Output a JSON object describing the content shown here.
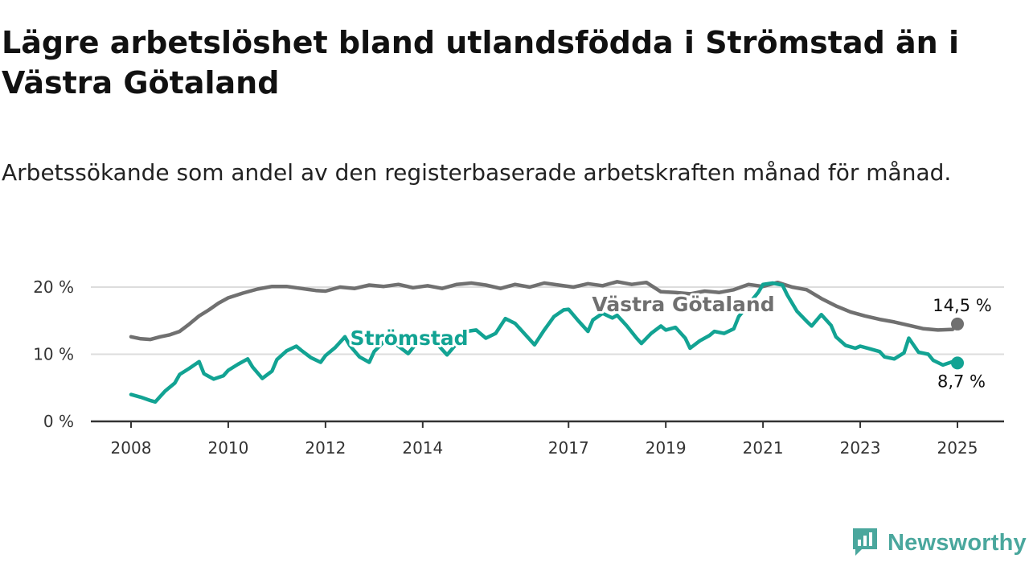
{
  "title": "Lägre arbetslöshet bland utlandsfödda i Strömstad än i Västra Götaland",
  "subtitle": "Arbetssökande som andel av den registerbaserade arbetskraften månad för månad.",
  "brand": "Newsworthy",
  "colors": {
    "stromstad": "#12a393",
    "vastra_gotaland": "#707070",
    "grid": "#dddddd",
    "axis": "#333333",
    "brand": "#4aa79d"
  },
  "chart_data": {
    "type": "line",
    "title": "Lägre arbetslöshet bland utlandsfödda i Strömstad än i Västra Götaland",
    "subtitle": "Arbetssökande som andel av den registerbaserade arbetskraften månad för månad.",
    "x_unit": "year (decimal, monthly data)",
    "xlim": [
      2008,
      2025
    ],
    "ylim": [
      0,
      20
    ],
    "y_ticks": [
      0,
      10,
      20
    ],
    "y_tick_labels": [
      "0 %",
      "10 %",
      "20 %"
    ],
    "x_ticks": [
      2008,
      2010,
      2012,
      2014,
      2017,
      2019,
      2021,
      2023,
      2025
    ],
    "x_tick_labels": [
      "2008",
      "2010",
      "2012",
      "2014",
      "2017",
      "2019",
      "2021",
      "2023",
      "2025"
    ],
    "grid": "horizontal",
    "series": [
      {
        "name": "Västra Götaland",
        "color": "#707070",
        "end_label": "14,5 %",
        "points": [
          [
            2008.0,
            12.6
          ],
          [
            2008.2,
            12.3
          ],
          [
            2008.4,
            12.2
          ],
          [
            2008.6,
            12.6
          ],
          [
            2008.8,
            12.9
          ],
          [
            2009.0,
            13.4
          ],
          [
            2009.2,
            14.5
          ],
          [
            2009.4,
            15.7
          ],
          [
            2009.6,
            16.6
          ],
          [
            2009.8,
            17.6
          ],
          [
            2010.0,
            18.4
          ],
          [
            2010.3,
            19.1
          ],
          [
            2010.6,
            19.7
          ],
          [
            2010.9,
            20.1
          ],
          [
            2011.2,
            20.1
          ],
          [
            2011.5,
            19.8
          ],
          [
            2011.8,
            19.5
          ],
          [
            2012.0,
            19.4
          ],
          [
            2012.3,
            20.0
          ],
          [
            2012.6,
            19.8
          ],
          [
            2012.9,
            20.3
          ],
          [
            2013.2,
            20.1
          ],
          [
            2013.5,
            20.4
          ],
          [
            2013.8,
            19.9
          ],
          [
            2014.1,
            20.2
          ],
          [
            2014.4,
            19.8
          ],
          [
            2014.7,
            20.4
          ],
          [
            2015.0,
            20.6
          ],
          [
            2015.3,
            20.3
          ],
          [
            2015.6,
            19.8
          ],
          [
            2015.9,
            20.4
          ],
          [
            2016.2,
            20.0
          ],
          [
            2016.5,
            20.6
          ],
          [
            2016.8,
            20.3
          ],
          [
            2017.1,
            20.0
          ],
          [
            2017.4,
            20.5
          ],
          [
            2017.7,
            20.2
          ],
          [
            2018.0,
            20.8
          ],
          [
            2018.3,
            20.4
          ],
          [
            2018.6,
            20.7
          ],
          [
            2018.9,
            19.3
          ],
          [
            2019.2,
            19.2
          ],
          [
            2019.5,
            19.0
          ],
          [
            2019.8,
            19.4
          ],
          [
            2020.1,
            19.2
          ],
          [
            2020.4,
            19.6
          ],
          [
            2020.7,
            20.4
          ],
          [
            2021.0,
            20.1
          ],
          [
            2021.3,
            20.7
          ],
          [
            2021.6,
            20.0
          ],
          [
            2021.9,
            19.6
          ],
          [
            2022.2,
            18.3
          ],
          [
            2022.5,
            17.2
          ],
          [
            2022.8,
            16.3
          ],
          [
            2023.1,
            15.7
          ],
          [
            2023.4,
            15.2
          ],
          [
            2023.7,
            14.8
          ],
          [
            2024.0,
            14.3
          ],
          [
            2024.3,
            13.8
          ],
          [
            2024.6,
            13.6
          ],
          [
            2024.9,
            13.7
          ],
          [
            2025.0,
            14.5
          ]
        ]
      },
      {
        "name": "Strömstad",
        "color": "#12a393",
        "end_label": "8,7 %",
        "points": [
          [
            2008.0,
            4.0
          ],
          [
            2008.2,
            3.6
          ],
          [
            2008.4,
            3.1
          ],
          [
            2008.5,
            2.9
          ],
          [
            2008.7,
            4.5
          ],
          [
            2008.9,
            5.7
          ],
          [
            2009.0,
            7.0
          ],
          [
            2009.2,
            7.9
          ],
          [
            2009.4,
            8.9
          ],
          [
            2009.5,
            7.1
          ],
          [
            2009.7,
            6.3
          ],
          [
            2009.9,
            6.8
          ],
          [
            2010.0,
            7.6
          ],
          [
            2010.2,
            8.5
          ],
          [
            2010.4,
            9.3
          ],
          [
            2010.5,
            8.1
          ],
          [
            2010.7,
            6.4
          ],
          [
            2010.9,
            7.5
          ],
          [
            2011.0,
            9.2
          ],
          [
            2011.2,
            10.5
          ],
          [
            2011.4,
            11.2
          ],
          [
            2011.5,
            10.6
          ],
          [
            2011.7,
            9.5
          ],
          [
            2011.9,
            8.8
          ],
          [
            2012.0,
            9.8
          ],
          [
            2012.2,
            11.0
          ],
          [
            2012.4,
            12.6
          ],
          [
            2012.5,
            11.3
          ],
          [
            2012.7,
            9.6
          ],
          [
            2012.9,
            8.8
          ],
          [
            2013.0,
            10.4
          ],
          [
            2013.3,
            12.6
          ],
          [
            2013.5,
            11.2
          ],
          [
            2013.7,
            10.1
          ],
          [
            2013.9,
            11.9
          ],
          [
            2014.1,
            12.9
          ],
          [
            2014.3,
            11.5
          ],
          [
            2014.5,
            9.9
          ],
          [
            2014.7,
            11.6
          ],
          [
            2014.9,
            13.4
          ],
          [
            2015.1,
            13.6
          ],
          [
            2015.3,
            12.4
          ],
          [
            2015.5,
            13.1
          ],
          [
            2015.7,
            15.3
          ],
          [
            2015.9,
            14.6
          ],
          [
            2016.1,
            13.0
          ],
          [
            2016.3,
            11.4
          ],
          [
            2016.5,
            13.6
          ],
          [
            2016.7,
            15.6
          ],
          [
            2016.9,
            16.6
          ],
          [
            2017.0,
            16.7
          ],
          [
            2017.2,
            15.0
          ],
          [
            2017.4,
            13.4
          ],
          [
            2017.5,
            15.1
          ],
          [
            2017.7,
            16.1
          ],
          [
            2017.9,
            15.4
          ],
          [
            2018.0,
            15.8
          ],
          [
            2018.2,
            14.2
          ],
          [
            2018.4,
            12.4
          ],
          [
            2018.5,
            11.6
          ],
          [
            2018.7,
            13.1
          ],
          [
            2018.9,
            14.2
          ],
          [
            2019.0,
            13.6
          ],
          [
            2019.2,
            14.0
          ],
          [
            2019.4,
            12.4
          ],
          [
            2019.5,
            10.9
          ],
          [
            2019.7,
            12.0
          ],
          [
            2019.9,
            12.8
          ],
          [
            2020.0,
            13.4
          ],
          [
            2020.2,
            13.1
          ],
          [
            2020.4,
            13.8
          ],
          [
            2020.5,
            15.6
          ],
          [
            2020.7,
            17.4
          ],
          [
            2020.9,
            19.2
          ],
          [
            2021.0,
            20.4
          ],
          [
            2021.2,
            20.6
          ],
          [
            2021.4,
            20.3
          ],
          [
            2021.5,
            18.8
          ],
          [
            2021.7,
            16.4
          ],
          [
            2021.9,
            14.9
          ],
          [
            2022.0,
            14.2
          ],
          [
            2022.2,
            15.9
          ],
          [
            2022.4,
            14.3
          ],
          [
            2022.5,
            12.6
          ],
          [
            2022.7,
            11.3
          ],
          [
            2022.9,
            10.9
          ],
          [
            2023.0,
            11.2
          ],
          [
            2023.2,
            10.8
          ],
          [
            2023.4,
            10.4
          ],
          [
            2023.5,
            9.6
          ],
          [
            2023.7,
            9.3
          ],
          [
            2023.9,
            10.2
          ],
          [
            2024.0,
            12.4
          ],
          [
            2024.2,
            10.3
          ],
          [
            2024.4,
            10.0
          ],
          [
            2024.5,
            9.1
          ],
          [
            2024.7,
            8.4
          ],
          [
            2024.9,
            8.9
          ],
          [
            2025.0,
            8.7
          ]
        ]
      }
    ]
  }
}
